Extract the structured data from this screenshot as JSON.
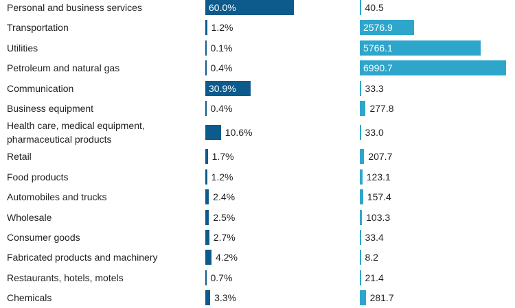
{
  "chart_data": {
    "type": "bar",
    "categories": [
      "Personal and business services",
      "Transportation",
      "Utilities",
      "Petroleum and natural gas",
      "Communication",
      "Business equipment",
      "Health care, medical equipment,\npharmaceutical products",
      "Retail",
      "Food products",
      "Automobiles and trucks",
      "Wholesale",
      "Consumer goods",
      "Fabricated products and machinery",
      "Restaurants, hotels, motels",
      "Chemicals"
    ],
    "series": [
      {
        "color": "#0d5a8c",
        "values": [
          60.0,
          1.2,
          0.1,
          0.4,
          30.9,
          0.4,
          10.6,
          1.7,
          1.2,
          2.4,
          2.5,
          2.7,
          4.2,
          0.7,
          3.3
        ],
        "value_labels": [
          "60.0%",
          "1.2%",
          "0.1%",
          "0.4%",
          "30.9%",
          "0.4%",
          "10.6%",
          "1.7%",
          "1.2%",
          "2.4%",
          "2.5%",
          "2.7%",
          "4.2%",
          "0.7%",
          "3.3%"
        ]
      },
      {
        "color": "#2ea6cc",
        "values": [
          40.5,
          2576.9,
          5766.1,
          6990.7,
          33.3,
          277.8,
          33.0,
          207.7,
          123.1,
          157.4,
          103.3,
          33.4,
          8.2,
          21.4,
          281.7
        ],
        "value_labels": [
          "40.5",
          "2576.9",
          "5766.1",
          "6990.7",
          "33.3",
          "277.8",
          "33.0",
          "207.7",
          "123.1",
          "157.4",
          "103.3",
          "33.4",
          "8.2",
          "21.4",
          "281.7"
        ]
      }
    ]
  }
}
